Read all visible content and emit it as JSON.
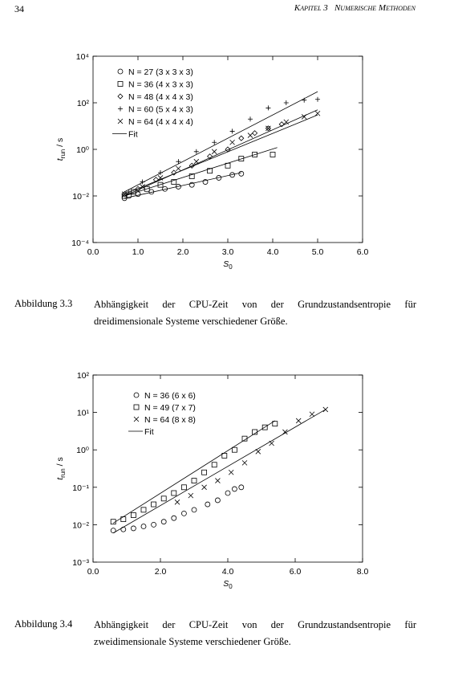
{
  "header": {
    "page_number": "34",
    "running_title": "Kapitel 3   Numerische Methoden"
  },
  "chart_data": [
    {
      "type": "scatter",
      "log_y": true,
      "xlabel": "S",
      "xlabel_sub": "0",
      "ylabel": "t",
      "ylabel_sub": "run",
      "ylabel_unit": " / s",
      "xlim": [
        0,
        6
      ],
      "ylim": [
        0.0001,
        10000
      ],
      "xticks": [
        {
          "value": 0,
          "label": "0.0"
        },
        {
          "value": 1,
          "label": "1.0"
        },
        {
          "value": 2,
          "label": "2.0"
        },
        {
          "value": 3,
          "label": "3.0"
        },
        {
          "value": 4,
          "label": "4.0"
        },
        {
          "value": 5,
          "label": "5.0"
        },
        {
          "value": 6,
          "label": "6.0"
        }
      ],
      "yticks": [
        {
          "value": 0.0001,
          "label": "10⁻⁴"
        },
        {
          "value": 0.01,
          "label": "10⁻²"
        },
        {
          "value": 1,
          "label": "10⁰"
        },
        {
          "value": 100,
          "label": "10²"
        },
        {
          "value": 10000,
          "label": "10⁴"
        }
      ],
      "series": [
        {
          "name": "N = 27 (3 x 3 x 3)",
          "marker": "circle",
          "color": "#000000",
          "x": [
            0.7,
            0.8,
            1.0,
            1.3,
            1.6,
            1.9,
            2.2,
            2.5,
            2.8,
            3.1,
            3.3
          ],
          "values": [
            0.008,
            0.01,
            0.012,
            0.015,
            0.02,
            0.025,
            0.03,
            0.04,
            0.06,
            0.08,
            0.09
          ]
        },
        {
          "name": "N = 36 (4 x 3 x 3)",
          "marker": "square",
          "color": "#000000",
          "x": [
            0.7,
            0.9,
            1.2,
            1.5,
            1.8,
            2.2,
            2.6,
            3.0,
            3.3,
            3.6,
            4.0
          ],
          "values": [
            0.01,
            0.015,
            0.02,
            0.03,
            0.04,
            0.07,
            0.12,
            0.2,
            0.4,
            0.6,
            0.6
          ]
        },
        {
          "name": "N = 48 (4 x 4 x 3)",
          "marker": "diamond",
          "color": "#000000",
          "x": [
            0.7,
            1.0,
            1.4,
            1.8,
            2.2,
            2.6,
            3.0,
            3.3,
            3.6,
            3.9,
            4.2
          ],
          "values": [
            0.012,
            0.02,
            0.05,
            0.1,
            0.2,
            0.5,
            1,
            3,
            5,
            8,
            12
          ]
        },
        {
          "name": "N = 60 (5 x 4 x 3)",
          "marker": "plus",
          "color": "#000000",
          "x": [
            0.8,
            1.1,
            1.5,
            1.9,
            2.3,
            2.7,
            3.1,
            3.5,
            3.9,
            4.3,
            4.7,
            5.0
          ],
          "values": [
            0.015,
            0.04,
            0.1,
            0.3,
            0.8,
            2,
            6,
            20,
            60,
            100,
            130,
            140
          ]
        },
        {
          "name": "N = 64 (4 x 4 x 4)",
          "marker": "x",
          "color": "#000000",
          "x": [
            0.7,
            1.1,
            1.5,
            1.9,
            2.3,
            2.7,
            3.1,
            3.5,
            3.9,
            4.3,
            4.7,
            5.0
          ],
          "values": [
            0.012,
            0.025,
            0.06,
            0.15,
            0.3,
            0.8,
            2,
            4,
            8,
            15,
            25,
            35
          ]
        }
      ],
      "fit": {
        "name": "Fit",
        "lines": [
          {
            "x": [
              0.7,
              3.3
            ],
            "values": [
              0.008,
              0.1
            ]
          },
          {
            "x": [
              0.7,
              4.1
            ],
            "values": [
              0.01,
              1.2
            ]
          },
          {
            "x": [
              0.7,
              5.0
            ],
            "values": [
              0.012,
              30
            ]
          },
          {
            "x": [
              0.7,
              5.0
            ],
            "values": [
              0.015,
              300
            ]
          },
          {
            "x": [
              0.7,
              5.0
            ],
            "values": [
              0.01,
              50
            ]
          }
        ]
      }
    },
    {
      "type": "scatter",
      "log_y": true,
      "xlabel": "S",
      "xlabel_sub": "0",
      "ylabel": "t",
      "ylabel_sub": "run",
      "ylabel_unit": " / s",
      "xlim": [
        0,
        8
      ],
      "ylim": [
        0.001,
        100
      ],
      "xticks": [
        {
          "value": 0,
          "label": "0.0"
        },
        {
          "value": 2,
          "label": "2.0"
        },
        {
          "value": 4,
          "label": "4.0"
        },
        {
          "value": 6,
          "label": "6.0"
        },
        {
          "value": 8,
          "label": "8.0"
        }
      ],
      "yticks": [
        {
          "value": 0.001,
          "label": "10⁻³"
        },
        {
          "value": 0.01,
          "label": "10⁻²"
        },
        {
          "value": 0.1,
          "label": "10⁻¹"
        },
        {
          "value": 1,
          "label": "10⁰"
        },
        {
          "value": 10,
          "label": "10¹"
        },
        {
          "value": 100,
          "label": "10²"
        }
      ],
      "series": [
        {
          "name": "N = 36 (6 x 6)",
          "marker": "circle",
          "color": "#000000",
          "x": [
            0.6,
            0.9,
            1.2,
            1.5,
            1.8,
            2.1,
            2.4,
            2.7,
            3.0,
            3.4,
            3.7,
            4.0,
            4.2,
            4.4
          ],
          "values": [
            0.007,
            0.0075,
            0.008,
            0.009,
            0.01,
            0.012,
            0.015,
            0.02,
            0.025,
            0.035,
            0.045,
            0.07,
            0.09,
            0.1
          ]
        },
        {
          "name": "N = 49 (7 x 7)",
          "marker": "square",
          "color": "#000000",
          "x": [
            0.6,
            0.9,
            1.2,
            1.5,
            1.8,
            2.1,
            2.4,
            2.7,
            3.0,
            3.3,
            3.6,
            3.9,
            4.2,
            4.5,
            4.8,
            5.1,
            5.4
          ],
          "values": [
            0.012,
            0.014,
            0.018,
            0.025,
            0.035,
            0.05,
            0.07,
            0.1,
            0.15,
            0.25,
            0.4,
            0.7,
            1,
            2,
            3,
            4,
            5
          ]
        },
        {
          "name": "N = 64 (8 x 8)",
          "marker": "x",
          "color": "#000000",
          "x": [
            2.5,
            2.9,
            3.3,
            3.7,
            4.1,
            4.5,
            4.9,
            5.3,
            5.7,
            6.1,
            6.5,
            6.9
          ],
          "values": [
            0.04,
            0.06,
            0.1,
            0.15,
            0.25,
            0.45,
            0.9,
            1.5,
            3,
            6,
            9,
            12
          ]
        }
      ],
      "fit": {
        "name": "Fit",
        "lines": [
          {
            "x": [
              0.6,
              5.4
            ],
            "values": [
              0.011,
              6
            ]
          },
          {
            "x": [
              0.6,
              6.9
            ],
            "values": [
              0.006,
              12
            ]
          }
        ]
      }
    }
  ],
  "captions": [
    {
      "label": "Abbildung 3.3",
      "text": "Abhängigkeit der CPU-Zeit von der Grundzustandsentropie für dreidimensionale Systeme verschiedener Größe."
    },
    {
      "label": "Abbildung 3.4",
      "text": "Abhängigkeit der CPU-Zeit von der Grundzustandsentropie für zweidimensionale Systeme verschiedener Größe."
    }
  ]
}
